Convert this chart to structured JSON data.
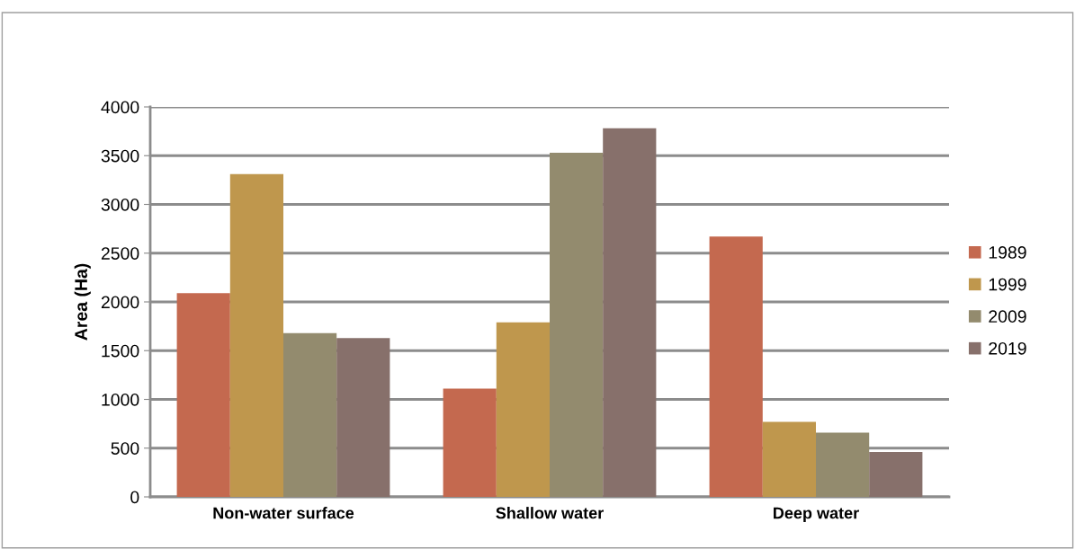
{
  "chart_data": {
    "type": "bar",
    "ylabel": "Area (Ha)",
    "categories": [
      "Non-water surface",
      "Shallow water",
      "Deep water"
    ],
    "series": [
      {
        "name": "1989",
        "color": "#c4694f",
        "values": [
          2090,
          1110,
          2670
        ]
      },
      {
        "name": "1999",
        "color": "#bf974d",
        "values": [
          3310,
          1790,
          770
        ]
      },
      {
        "name": "2009",
        "color": "#938b6e",
        "values": [
          1680,
          3530,
          660
        ]
      },
      {
        "name": "2019",
        "color": "#87706b",
        "values": [
          1630,
          3780,
          460
        ]
      }
    ],
    "ylim": [
      0,
      4000
    ],
    "yticks": [
      0,
      500,
      1000,
      1500,
      2000,
      2500,
      3000,
      3500,
      4000
    ],
    "grid": "y",
    "legend": "right"
  }
}
